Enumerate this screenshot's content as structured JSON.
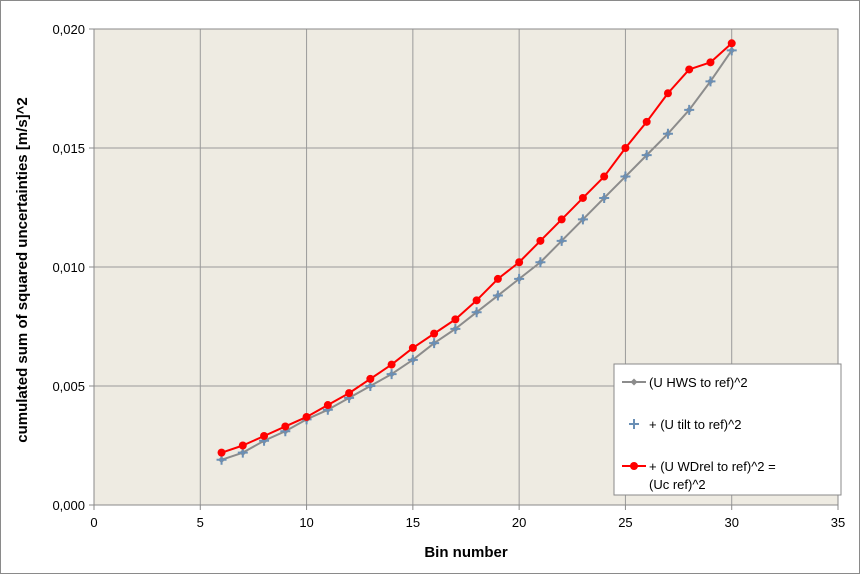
{
  "chart_data": {
    "type": "line",
    "title": "",
    "xlabel": "Bin number",
    "ylabel": "cumulated sum of squared uncertainties [m/s]^2",
    "xlim": [
      0,
      35
    ],
    "ylim": [
      0,
      0.02
    ],
    "x_ticks": [
      "0",
      "5",
      "10",
      "15",
      "20",
      "25",
      "30",
      "35"
    ],
    "y_ticks": [
      "0,000",
      "0,005",
      "0,010",
      "0,015",
      "0,020"
    ],
    "grid": true,
    "legend_position": "right",
    "x": [
      6,
      7,
      8,
      9,
      10,
      11,
      12,
      13,
      14,
      15,
      16,
      17,
      18,
      19,
      20,
      21,
      22,
      23,
      24,
      25,
      26,
      27,
      28,
      29,
      30
    ],
    "series": [
      {
        "name": "(U HWS to ref)^2",
        "color": "#8c8c8c",
        "marker": "diamond",
        "values": [
          0.0019,
          0.0022,
          0.0027,
          0.0031,
          0.0036,
          0.004,
          0.0045,
          0.005,
          0.0055,
          0.0061,
          0.0068,
          0.0074,
          0.0081,
          0.0088,
          0.0095,
          0.0102,
          0.0111,
          0.012,
          0.0129,
          0.0138,
          0.0147,
          0.0156,
          0.0166,
          0.0178,
          0.0191
        ]
      },
      {
        "name": "+ (U tilt to ref)^2",
        "color": "#6a8fb5",
        "marker": "plus",
        "values": [
          0.0019,
          0.0022,
          0.0027,
          0.0031,
          0.0036,
          0.004,
          0.0045,
          0.005,
          0.0055,
          0.0061,
          0.0068,
          0.0074,
          0.0081,
          0.0088,
          0.0095,
          0.0102,
          0.0111,
          0.012,
          0.0129,
          0.0138,
          0.0147,
          0.0156,
          0.0166,
          0.0178,
          0.0191
        ]
      },
      {
        "name": "+ (U WDrel to ref)^2 = (Uc ref)^2",
        "legend_lines": [
          "+ (U WDrel to ref)^2 =",
          "(Uc ref)^2"
        ],
        "color": "#ff0000",
        "marker": "circle",
        "values": [
          0.0022,
          0.0025,
          0.0029,
          0.0033,
          0.0037,
          0.0042,
          0.0047,
          0.0053,
          0.0059,
          0.0066,
          0.0072,
          0.0078,
          0.0086,
          0.0095,
          0.0102,
          0.0111,
          0.012,
          0.0129,
          0.0138,
          0.015,
          0.0161,
          0.0173,
          0.0183,
          0.0186,
          0.0194
        ]
      }
    ]
  }
}
